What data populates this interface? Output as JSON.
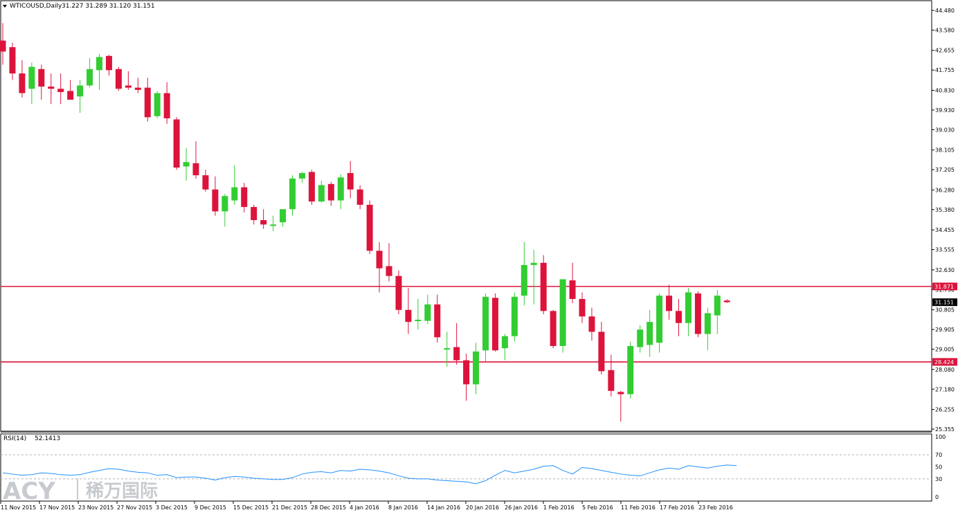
{
  "header": {
    "symbol_label": "WTICOUSD,Daily",
    "ohlc_values": "31.227 31.289 31.120 31.151"
  },
  "rsi_panel": {
    "label": "RSI(14)",
    "value": "52.1413",
    "ticks": [
      "100",
      "70",
      "50",
      "30",
      "0"
    ]
  },
  "watermark": {
    "brand": "ACY",
    "chinese": "稀万国际"
  },
  "colors": {
    "bull": "#32cd32",
    "bear": "#dc143c",
    "level_line": "#dc143c",
    "rsi_line": "#1e90ff",
    "current_price_label_bg": "#000000"
  },
  "chart_data": {
    "type": "candlestick",
    "title": "WTICOUSD,Daily",
    "ylim": [
      25.355,
      44.48
    ],
    "y_ticks": [
      "44.480",
      "43.580",
      "42.655",
      "41.755",
      "40.830",
      "39.930",
      "39.030",
      "38.105",
      "37.205",
      "36.280",
      "35.380",
      "34.455",
      "33.555",
      "32.630",
      "31.730",
      "30.805",
      "29.905",
      "29.005",
      "28.080",
      "27.180",
      "26.255",
      "25.355"
    ],
    "x_ticks": [
      "11 Nov 2015",
      "17 Nov 2015",
      "23 Nov 2015",
      "27 Nov 2015",
      "3 Dec 2015",
      "9 Dec 2015",
      "15 Dec 2015",
      "21 Dec 2015",
      "28 Dec 2015",
      "4 Jan 2016",
      "8 Jan 2016",
      "14 Jan 2016",
      "20 Jan 2016",
      "26 Jan 2016",
      "1 Feb 2016",
      "5 Feb 2016",
      "11 Feb 2016",
      "17 Feb 2016",
      "23 Feb 2016"
    ],
    "horizontal_levels": [
      {
        "value": 31.871,
        "label": "31.871"
      },
      {
        "value": 28.424,
        "label": "28.424"
      }
    ],
    "current_price": {
      "value": 31.151,
      "label": "31.151"
    },
    "candles": [
      {
        "o": 43.1,
        "h": 43.9,
        "l": 42.0,
        "c": 42.6
      },
      {
        "o": 42.8,
        "h": 43.0,
        "l": 41.3,
        "c": 41.6
      },
      {
        "o": 41.6,
        "h": 42.2,
        "l": 40.5,
        "c": 40.7
      },
      {
        "o": 40.9,
        "h": 42.1,
        "l": 40.2,
        "c": 41.9
      },
      {
        "o": 41.8,
        "h": 42.0,
        "l": 40.4,
        "c": 41.0
      },
      {
        "o": 41.0,
        "h": 41.6,
        "l": 40.2,
        "c": 40.9
      },
      {
        "o": 40.9,
        "h": 41.6,
        "l": 40.2,
        "c": 40.75
      },
      {
        "o": 40.8,
        "h": 41.3,
        "l": 40.4,
        "c": 40.4
      },
      {
        "o": 40.55,
        "h": 41.3,
        "l": 39.8,
        "c": 41.05
      },
      {
        "o": 41.05,
        "h": 42.3,
        "l": 40.95,
        "c": 41.8
      },
      {
        "o": 41.75,
        "h": 42.5,
        "l": 40.85,
        "c": 42.35
      },
      {
        "o": 42.4,
        "h": 42.45,
        "l": 41.5,
        "c": 41.75
      },
      {
        "o": 41.8,
        "h": 41.9,
        "l": 40.8,
        "c": 40.9
      },
      {
        "o": 41.05,
        "h": 41.7,
        "l": 40.85,
        "c": 40.95
      },
      {
        "o": 40.95,
        "h": 41.4,
        "l": 40.7,
        "c": 40.85
      },
      {
        "o": 40.95,
        "h": 41.4,
        "l": 39.4,
        "c": 39.6
      },
      {
        "o": 39.65,
        "h": 40.8,
        "l": 39.55,
        "c": 40.7
      },
      {
        "o": 40.7,
        "h": 41.2,
        "l": 39.3,
        "c": 39.55
      },
      {
        "o": 39.5,
        "h": 39.6,
        "l": 37.2,
        "c": 37.3
      },
      {
        "o": 37.35,
        "h": 38.2,
        "l": 36.7,
        "c": 37.55
      },
      {
        "o": 37.5,
        "h": 38.5,
        "l": 36.8,
        "c": 36.95
      },
      {
        "o": 36.95,
        "h": 37.2,
        "l": 36.2,
        "c": 36.3
      },
      {
        "o": 36.3,
        "h": 36.9,
        "l": 35.1,
        "c": 35.3
      },
      {
        "o": 35.3,
        "h": 36.1,
        "l": 34.6,
        "c": 36.0
      },
      {
        "o": 35.8,
        "h": 37.4,
        "l": 35.6,
        "c": 36.4
      },
      {
        "o": 36.4,
        "h": 36.6,
        "l": 35.25,
        "c": 35.5
      },
      {
        "o": 35.5,
        "h": 35.6,
        "l": 34.7,
        "c": 34.9
      },
      {
        "o": 34.9,
        "h": 35.4,
        "l": 34.5,
        "c": 34.7
      },
      {
        "o": 34.7,
        "h": 35.1,
        "l": 34.4,
        "c": 34.7
      },
      {
        "o": 34.8,
        "h": 35.35,
        "l": 34.6,
        "c": 35.4
      },
      {
        "o": 35.4,
        "h": 36.95,
        "l": 35.1,
        "c": 36.8
      },
      {
        "o": 36.8,
        "h": 37.1,
        "l": 36.6,
        "c": 37.05
      },
      {
        "o": 37.1,
        "h": 37.2,
        "l": 35.6,
        "c": 35.75
      },
      {
        "o": 35.75,
        "h": 36.7,
        "l": 35.7,
        "c": 36.5
      },
      {
        "o": 36.55,
        "h": 36.65,
        "l": 35.55,
        "c": 35.8
      },
      {
        "o": 35.8,
        "h": 37.0,
        "l": 35.4,
        "c": 36.85
      },
      {
        "o": 37.05,
        "h": 37.6,
        "l": 35.9,
        "c": 36.3
      },
      {
        "o": 36.3,
        "h": 36.5,
        "l": 35.4,
        "c": 35.6
      },
      {
        "o": 35.6,
        "h": 35.8,
        "l": 33.35,
        "c": 33.5
      },
      {
        "o": 33.5,
        "h": 33.9,
        "l": 31.6,
        "c": 32.7
      },
      {
        "o": 32.8,
        "h": 33.85,
        "l": 32.1,
        "c": 32.35
      },
      {
        "o": 32.35,
        "h": 32.6,
        "l": 30.6,
        "c": 30.8
      },
      {
        "o": 30.8,
        "h": 31.8,
        "l": 29.7,
        "c": 30.25
      },
      {
        "o": 30.3,
        "h": 31.3,
        "l": 29.9,
        "c": 30.35
      },
      {
        "o": 30.3,
        "h": 31.5,
        "l": 30.15,
        "c": 31.05
      },
      {
        "o": 31.05,
        "h": 31.5,
        "l": 29.3,
        "c": 29.55
      },
      {
        "o": 29.05,
        "h": 29.8,
        "l": 28.2,
        "c": 29.05
      },
      {
        "o": 29.1,
        "h": 30.2,
        "l": 28.3,
        "c": 28.5
      },
      {
        "o": 28.5,
        "h": 28.8,
        "l": 26.65,
        "c": 27.4
      },
      {
        "o": 27.4,
        "h": 29.3,
        "l": 26.95,
        "c": 28.9
      },
      {
        "o": 28.95,
        "h": 31.55,
        "l": 28.45,
        "c": 31.4
      },
      {
        "o": 31.35,
        "h": 31.55,
        "l": 28.9,
        "c": 28.95
      },
      {
        "o": 29.05,
        "h": 29.7,
        "l": 28.5,
        "c": 29.6
      },
      {
        "o": 29.6,
        "h": 31.6,
        "l": 29.35,
        "c": 31.4
      },
      {
        "o": 31.45,
        "h": 33.9,
        "l": 31.0,
        "c": 32.85
      },
      {
        "o": 32.85,
        "h": 33.55,
        "l": 31.05,
        "c": 32.95
      },
      {
        "o": 32.95,
        "h": 33.3,
        "l": 30.6,
        "c": 30.75
      },
      {
        "o": 30.75,
        "h": 30.8,
        "l": 29.05,
        "c": 29.15
      },
      {
        "o": 29.15,
        "h": 32.2,
        "l": 28.85,
        "c": 32.2
      },
      {
        "o": 32.15,
        "h": 32.95,
        "l": 31.1,
        "c": 31.3
      },
      {
        "o": 31.3,
        "h": 31.6,
        "l": 30.2,
        "c": 30.5
      },
      {
        "o": 30.5,
        "h": 30.9,
        "l": 29.4,
        "c": 29.8
      },
      {
        "o": 29.8,
        "h": 30.25,
        "l": 27.85,
        "c": 28.0
      },
      {
        "o": 28.05,
        "h": 28.75,
        "l": 26.85,
        "c": 27.1
      },
      {
        "o": 27.05,
        "h": 27.1,
        "l": 25.7,
        "c": 26.95
      },
      {
        "o": 26.95,
        "h": 29.35,
        "l": 26.75,
        "c": 29.15
      },
      {
        "o": 29.1,
        "h": 30.1,
        "l": 28.85,
        "c": 29.9
      },
      {
        "o": 29.2,
        "h": 30.8,
        "l": 28.65,
        "c": 30.25
      },
      {
        "o": 29.3,
        "h": 31.55,
        "l": 28.85,
        "c": 31.45
      },
      {
        "o": 31.45,
        "h": 31.95,
        "l": 30.35,
        "c": 30.75
      },
      {
        "o": 30.75,
        "h": 31.3,
        "l": 29.6,
        "c": 30.2
      },
      {
        "o": 30.2,
        "h": 31.8,
        "l": 29.6,
        "c": 31.6
      },
      {
        "o": 31.55,
        "h": 31.65,
        "l": 29.55,
        "c": 29.7
      },
      {
        "o": 29.7,
        "h": 30.9,
        "l": 28.95,
        "c": 30.65
      },
      {
        "o": 30.55,
        "h": 31.7,
        "l": 29.7,
        "c": 31.45
      },
      {
        "o": 31.227,
        "h": 31.289,
        "l": 31.12,
        "c": 31.151
      }
    ],
    "rsi": {
      "name": "RSI(14)",
      "ylim": [
        0,
        100
      ],
      "levels": [
        70,
        30
      ],
      "values": [
        40,
        38,
        36,
        37,
        40,
        39,
        37,
        36,
        37,
        41,
        44,
        47,
        46,
        43,
        41,
        40,
        36,
        37,
        32,
        33,
        33,
        31,
        28,
        32,
        34,
        33,
        31,
        30,
        29,
        29,
        32,
        38,
        41,
        42,
        40,
        44,
        43,
        46,
        45,
        43,
        40,
        35,
        31,
        30,
        30,
        28,
        27,
        26,
        25,
        22,
        27,
        36,
        44,
        40,
        43,
        46,
        51,
        52,
        44,
        38,
        49,
        47,
        44,
        41,
        38,
        36,
        35,
        40,
        45,
        48,
        46,
        52,
        50,
        48,
        51,
        53,
        52
      ]
    }
  }
}
